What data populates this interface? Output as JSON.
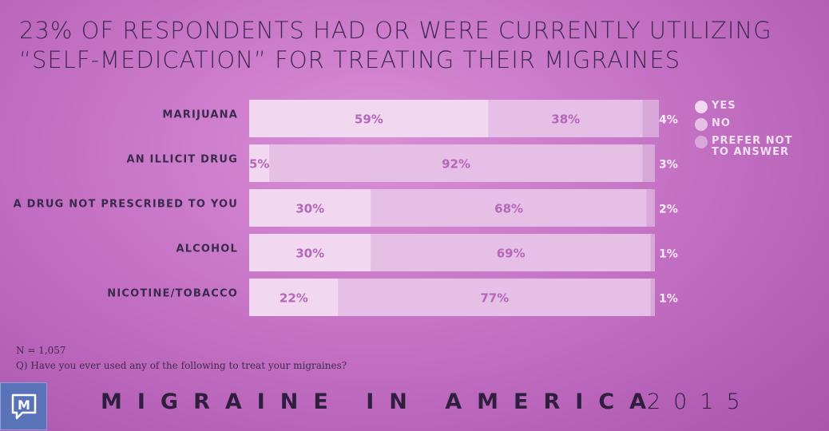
{
  "title": {
    "line1": "23% OF RESPONDENTS HAD OR WERE CURRENTLY UTILIZING",
    "line2": "“SELF-MEDICATION” FOR TREATING THEIR MIGRAINES"
  },
  "colors": {
    "yes": "#f2d7f1",
    "no": "#e6bfe6",
    "prefer_not": "#d9a8da",
    "text_dark": "#3a2a4c",
    "value_text": "#b567b8"
  },
  "chart_data": {
    "type": "bar",
    "orientation": "horizontal",
    "stacked": true,
    "categories": [
      "MARIJUANA",
      "AN ILLICIT DRUG",
      "A DRUG NOT PRESCRIBED TO YOU",
      "ALCOHOL",
      "NICOTINE/TOBACCO"
    ],
    "series": [
      {
        "name": "YES",
        "values": [
          59,
          5,
          30,
          30,
          22
        ],
        "labels": [
          "59%",
          "5%",
          "30%",
          "30%",
          "22%"
        ]
      },
      {
        "name": "NO",
        "values": [
          38,
          92,
          68,
          69,
          77
        ],
        "labels": [
          "38%",
          "92%",
          "68%",
          "69%",
          "77%"
        ]
      },
      {
        "name": "PREFER NOT TO ANSWER",
        "values": [
          4,
          3,
          2,
          1,
          1
        ],
        "labels": [
          "4%",
          "3%",
          "2%",
          "1%",
          "1%"
        ]
      }
    ],
    "xlim": [
      0,
      100
    ],
    "legend": "right"
  },
  "legend": [
    {
      "label": "YES",
      "color": "#f2d7f1"
    },
    {
      "label": "NO",
      "color": "#e6bfe6"
    },
    {
      "label": "PREFER NOT TO ANSWER",
      "color": "#d9a8da"
    }
  ],
  "notes": {
    "n": "N = 1,057",
    "question": "Q) Have you ever used any of the following to treat your migraines?"
  },
  "footer": {
    "logo_letter": "M",
    "brand": "MIGRAINE IN AMERICA",
    "year": "2015"
  }
}
